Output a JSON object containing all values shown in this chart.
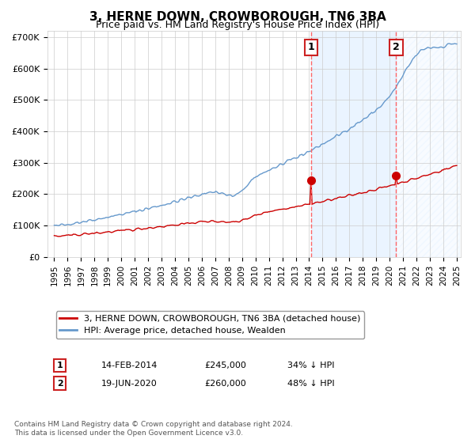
{
  "title": "3, HERNE DOWN, CROWBOROUGH, TN6 3BA",
  "subtitle": "Price paid vs. HM Land Registry's House Price Index (HPI)",
  "legend_label_red": "3, HERNE DOWN, CROWBOROUGH, TN6 3BA (detached house)",
  "legend_label_blue": "HPI: Average price, detached house, Wealden",
  "annotation1_label": "1",
  "annotation1_date": "14-FEB-2014",
  "annotation1_price": 245000,
  "annotation1_text": "34% ↓ HPI",
  "annotation2_label": "2",
  "annotation2_date": "19-JUN-2020",
  "annotation2_price": 260000,
  "annotation2_text": "48% ↓ HPI",
  "year_start": 1995,
  "year_end": 2025,
  "ylim": [
    0,
    720000
  ],
  "red_color": "#cc0000",
  "blue_color": "#6699cc",
  "blue_fill_color": "#ddeeff",
  "marker_color": "#cc0000",
  "dashed_line_color": "#ff6666",
  "footnote": "Contains HM Land Registry data © Crown copyright and database right 2024.\nThis data is licensed under the Open Government Licence v3.0.",
  "background_color": "#ffffff",
  "grid_color": "#cccccc"
}
